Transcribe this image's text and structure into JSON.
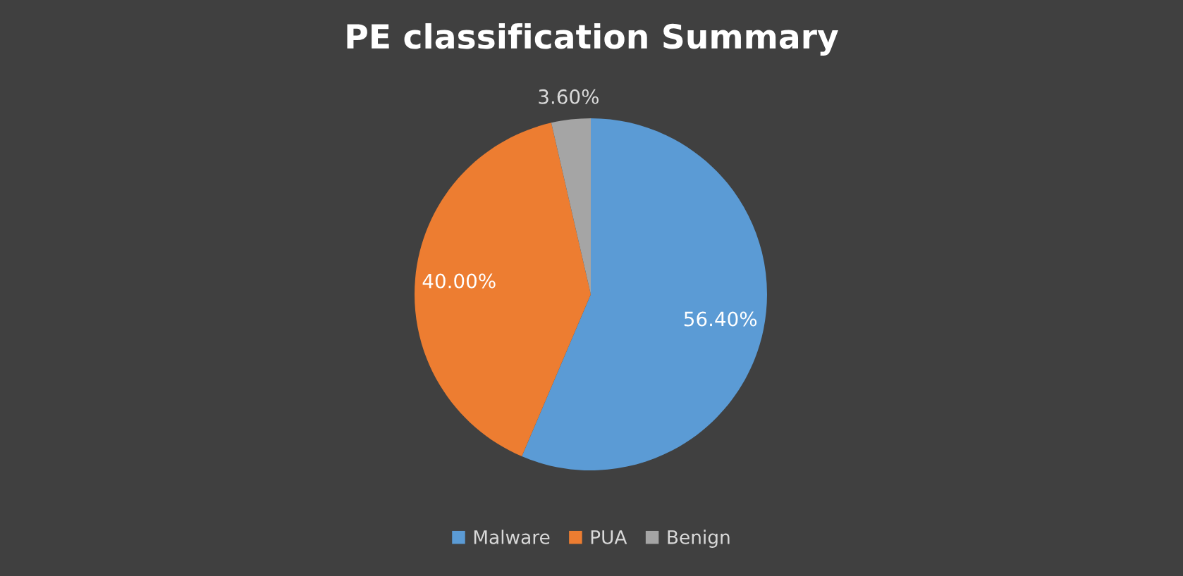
{
  "chart_data": {
    "type": "pie",
    "title": "PE classification Summary",
    "categories": [
      "Malware",
      "PUA",
      "Benign"
    ],
    "values": [
      56.4,
      40.0,
      3.6
    ],
    "value_labels": [
      "56.40%",
      "40.00%",
      "3.60%"
    ],
    "colors": [
      "#5b9bd5",
      "#ed7d31",
      "#a5a5a5"
    ],
    "legend": "bottom"
  }
}
